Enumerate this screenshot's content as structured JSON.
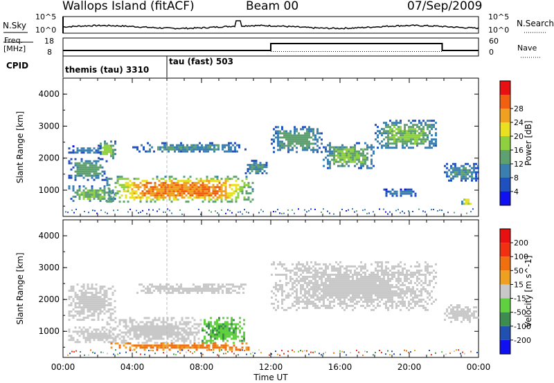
{
  "header": {
    "site": "Wallops Island (fitACF)",
    "beam": "Beam 00",
    "date": "07/Sep/2009"
  },
  "panels": {
    "nsky_label": "N.Sky",
    "nsky_ticks": [
      "10^5",
      "10^0"
    ],
    "nsearch_ticks": [
      "10^5",
      "10^0"
    ],
    "nsearch_label": "N.Search",
    "freq_label": "Freq.",
    "freq_unit": "[MHz]",
    "freq_ticks": [
      "18",
      "8"
    ],
    "nave_label": "Nave",
    "nave_ticks": [
      "60",
      "0"
    ],
    "cpid_label": "CPID",
    "cpid_segments": [
      "themis (tau) 3310",
      "tau (fast) 503"
    ]
  },
  "chart_data": [
    {
      "type": "heatmap",
      "panel": "power",
      "ylabel": "Slant Range [km]",
      "xlabel": "",
      "yticks": [
        "1000",
        "2000",
        "3000",
        "4000"
      ],
      "ylim": [
        180,
        4500
      ],
      "xlim": [
        0,
        24
      ],
      "colorbar": {
        "label": "Power [dB]",
        "ticks": [
          "4",
          "8",
          "12",
          "16",
          "20",
          "24",
          "28"
        ],
        "colors": [
          "#1010f0",
          "#2050c0",
          "#3a7fb0",
          "#5fa070",
          "#8fd040",
          "#e8e020",
          "#f0a020",
          "#f06010",
          "#e81010"
        ]
      },
      "echo_regions": [
        {
          "t0": 0.3,
          "t1": 2.5,
          "r0": 1350,
          "r1": 2000,
          "level": 12
        },
        {
          "t0": 2.0,
          "t1": 3.0,
          "r0": 2000,
          "r1": 2550,
          "level": 16
        },
        {
          "t0": 0.3,
          "t1": 2.2,
          "r0": 2150,
          "r1": 2400,
          "level": 8
        },
        {
          "t0": 0.3,
          "t1": 3.0,
          "r0": 650,
          "r1": 1150,
          "level": 14
        },
        {
          "t0": 2.5,
          "t1": 11.0,
          "r0": 650,
          "r1": 1450,
          "level": 26
        },
        {
          "t0": 4.0,
          "t1": 10.5,
          "r0": 2200,
          "r1": 2500,
          "level": 10
        },
        {
          "t0": 10.5,
          "t1": 11.8,
          "r0": 1500,
          "r1": 1950,
          "level": 10
        },
        {
          "t0": 12.0,
          "t1": 15.0,
          "r0": 2200,
          "r1": 3000,
          "level": 12
        },
        {
          "t0": 15.0,
          "t1": 18.0,
          "r0": 1700,
          "r1": 2500,
          "level": 14
        },
        {
          "t0": 18.0,
          "t1": 21.6,
          "r0": 2300,
          "r1": 3200,
          "level": 14
        },
        {
          "t0": 22.0,
          "t1": 24.0,
          "r0": 1300,
          "r1": 1850,
          "level": 10
        },
        {
          "t0": 18.5,
          "t1": 20.5,
          "r0": 850,
          "r1": 1050,
          "level": 8
        },
        {
          "t0": 23.0,
          "t1": 23.6,
          "r0": 550,
          "r1": 800,
          "level": 20
        }
      ]
    },
    {
      "type": "heatmap",
      "panel": "velocity",
      "ylabel": "Slant Range [km]",
      "xlabel": "Time UT",
      "xticks": [
        "00:00",
        "04:00",
        "08:00",
        "12:00",
        "16:00",
        "20:00",
        "00:00"
      ],
      "yticks": [
        "1000",
        "2000",
        "3000",
        "4000"
      ],
      "ylim": [
        180,
        4500
      ],
      "xlim": [
        0,
        24
      ],
      "colorbar": {
        "label": "Velocity [m s^-1]",
        "ticks": [
          "200",
          "100",
          "50",
          "15",
          "-15",
          "-50",
          "-100",
          "-200"
        ],
        "colors": [
          "#1010f0",
          "#2050b0",
          "#3c8c50",
          "#60d040",
          "#c8c8c8",
          "#f0a020",
          "#f07010",
          "#f03010",
          "#e81010"
        ]
      },
      "echo_regions": [
        {
          "t0": 0.3,
          "t1": 3.0,
          "r0": 1350,
          "r1": 2500,
          "level": 0
        },
        {
          "t0": 0.3,
          "t1": 3.0,
          "r0": 650,
          "r1": 1150,
          "level": 0
        },
        {
          "t0": 2.5,
          "t1": 8.0,
          "r0": 650,
          "r1": 1450,
          "level": 0
        },
        {
          "t0": 8.0,
          "t1": 10.5,
          "r0": 650,
          "r1": 1450,
          "level": 30
        },
        {
          "t0": 2.5,
          "t1": 11.0,
          "r0": 450,
          "r1": 650,
          "level": -40
        },
        {
          "t0": 4.0,
          "t1": 10.5,
          "r0": 2200,
          "r1": 2500,
          "level": 0
        },
        {
          "t0": 12.0,
          "t1": 21.6,
          "r0": 1700,
          "r1": 3200,
          "level": 0
        },
        {
          "t0": 22.0,
          "t1": 24.0,
          "r0": 1300,
          "r1": 1850,
          "level": 0
        }
      ]
    }
  ]
}
